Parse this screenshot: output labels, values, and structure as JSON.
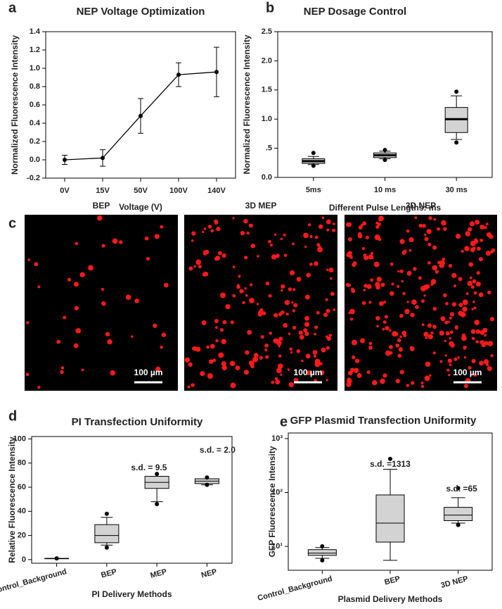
{
  "chart_data": [
    {
      "type": "line",
      "panel": "a",
      "title": "NEP Voltage Optimization",
      "xlabel": "Voltage (V)",
      "ylabel": "Normalized Fluorescence Intensity",
      "categories": [
        "0V",
        "15V",
        "50V",
        "100V",
        "140V"
      ],
      "values": [
        0.0,
        0.02,
        0.48,
        0.93,
        0.96
      ],
      "errors": [
        0.05,
        0.09,
        0.19,
        0.13,
        0.27
      ],
      "color": "#000000",
      "ylim": [
        -0.2,
        1.4
      ],
      "yticks": [
        -0.2,
        {
          "value": 0,
          "label": "0.0"
        },
        0.2,
        0.4,
        0.6,
        0.8,
        {
          "value": 1,
          "label": "1.0"
        },
        1.2,
        1.4
      ]
    },
    {
      "type": "box",
      "panel": "b",
      "title": "NEP Dosage Control",
      "xlabel": "Different Pulse Lengths: ms",
      "ylabel": "Normalized Fluorescence Intensity",
      "categories": [
        "5ms",
        "10 ms",
        "30 ms"
      ],
      "color": "#d3d3d3",
      "boxes": [
        {
          "whislo": 0.22,
          "q1": 0.24,
          "med": 0.28,
          "q3": 0.32,
          "whishi": 0.36,
          "fliers": [
            0.42,
            0.2
          ]
        },
        {
          "whislo": 0.32,
          "q1": 0.34,
          "med": 0.38,
          "q3": 0.42,
          "whishi": 0.45,
          "fliers": [
            0.47,
            0.3
          ]
        },
        {
          "whislo": 0.65,
          "q1": 0.77,
          "med": 1.0,
          "q3": 1.2,
          "whishi": 1.4,
          "fliers": [
            1.47,
            0.6
          ]
        }
      ],
      "ylim": [
        0,
        2.5
      ],
      "yticks": [
        {
          "value": 0,
          "label": "0.0"
        },
        {
          "value": 0.5,
          "label": ".5"
        },
        {
          "value": 1,
          "label": "1.0"
        },
        {
          "value": 1.5,
          "label": "1.5"
        },
        {
          "value": 2,
          "label": "2.0"
        },
        {
          "value": 2.5,
          "label": "2.5"
        }
      ]
    },
    {
      "type": "box",
      "panel": "d",
      "title": "PI Transfection Uniformity",
      "xlabel": "PI Delivery Methods",
      "ylabel": "Relative Fluorescence Intensity",
      "categories": [
        "Control_Background",
        "BEP",
        "MEP",
        "NEP"
      ],
      "color": "#d3d3d3",
      "boxes": [
        {
          "whislo": 1,
          "q1": 1,
          "med": 1,
          "q3": 1,
          "whishi": 1,
          "fliers": [
            1
          ]
        },
        {
          "whislo": 12,
          "q1": 14,
          "med": 20,
          "q3": 29,
          "whishi": 35,
          "fliers": [
            38,
            10
          ]
        },
        {
          "whislo": 48,
          "q1": 59,
          "med": 64,
          "q3": 69,
          "whishi": 69,
          "fliers": [
            71,
            46
          ]
        },
        {
          "whislo": 62,
          "q1": 63,
          "med": 65,
          "q3": 67,
          "whishi": 67,
          "fliers": [
            68,
            62
          ]
        }
      ],
      "annotations": [
        "s.d. = 9.5",
        "s.d. = 2.0"
      ],
      "ylim": [
        -3,
        102
      ],
      "yticks": [
        0,
        20,
        40,
        60,
        80,
        100
      ]
    },
    {
      "type": "box",
      "panel": "e",
      "title": "GFP Plasmid Transfection Uniformity",
      "xlabel": "Plasmid Delivery Methods",
      "ylabel": "GFP Fluorescence Intensity",
      "categories": [
        "Control_Background",
        "BEP",
        "3D NEP"
      ],
      "color": "#d3d3d3",
      "log": true,
      "boxes": [
        {
          "whislo": 6,
          "q1": 6.8,
          "med": 7.5,
          "q3": 8.7,
          "whishi": 9.5,
          "fliers": [
            10,
            5.5
          ]
        },
        {
          "whislo": 5.5,
          "q1": 12,
          "med": 27,
          "q3": 90,
          "whishi": 270,
          "fliers": [
            420
          ]
        },
        {
          "whislo": 27,
          "q1": 30,
          "med": 38,
          "q3": 53,
          "whishi": 80,
          "fliers": [
            120,
            25
          ]
        }
      ],
      "annotations": [
        "s.d. =1313",
        "s.d. =65"
      ],
      "ylim": [
        3.6,
        1270
      ],
      "yticks": [
        {
          "value": 10,
          "label": "10¹"
        },
        {
          "value": 100,
          "label": "10²"
        },
        {
          "value": 1000,
          "label": "10³"
        }
      ]
    }
  ],
  "images": {
    "panel": "c",
    "titles": [
      "BEP",
      "3D MEP",
      "3D NEP"
    ],
    "scale_labels": [
      "100 µm",
      "100 µm",
      "100 µm"
    ]
  }
}
